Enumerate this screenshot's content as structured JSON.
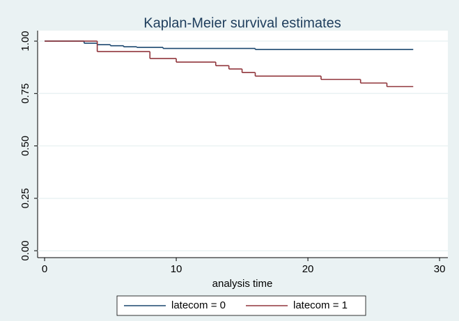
{
  "chart_data": {
    "type": "step-line",
    "title": "Kaplan-Meier survival estimates",
    "x_label": "analysis time",
    "series": [
      {
        "name": "latecom = 0",
        "color": "#1a476f",
        "x": [
          0,
          3,
          4,
          5,
          6,
          7,
          9,
          16,
          28
        ],
        "values": [
          1,
          0.99,
          0.983,
          0.978,
          0.973,
          0.97,
          0.965,
          0.96,
          0.96
        ]
      },
      {
        "name": "latecom = 1",
        "color": "#90353b",
        "x": [
          0,
          4,
          8,
          10,
          13,
          14,
          15,
          16,
          21,
          24,
          26,
          28
        ],
        "values": [
          1,
          0.95,
          0.917,
          0.9,
          0.883,
          0.867,
          0.85,
          0.833,
          0.817,
          0.8,
          0.783,
          0.783
        ]
      }
    ],
    "xlim": [
      -0.53,
      30.63
    ],
    "xticks": [
      0,
      10,
      20,
      30
    ],
    "ylim": [
      -0.033,
      1.05
    ],
    "yticks": [
      {
        "value": 0,
        "label": "0.00"
      },
      {
        "value": 0.25,
        "label": "0.25"
      },
      {
        "value": 0.5,
        "label": "0.50"
      },
      {
        "value": 0.75,
        "label": "0.75"
      },
      {
        "value": 1,
        "label": "1.00"
      }
    ],
    "grid": true
  }
}
